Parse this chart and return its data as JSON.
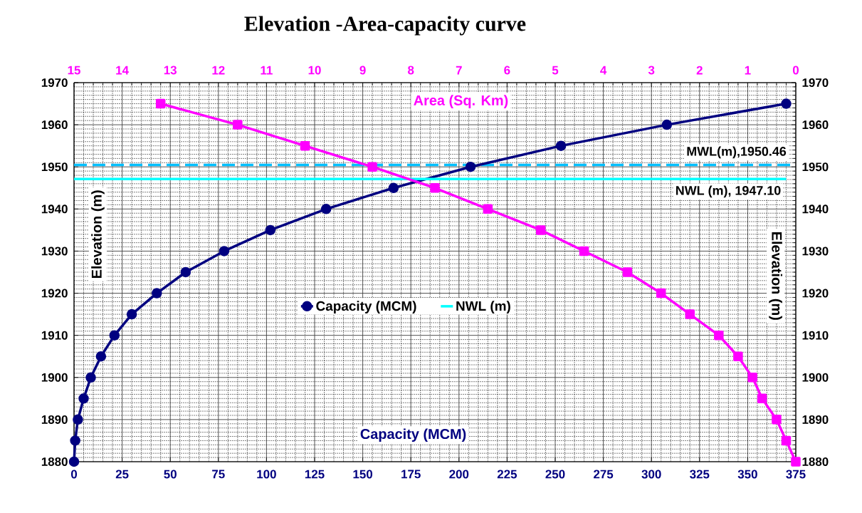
{
  "chart_data": {
    "type": "line",
    "title": "Elevation -Area-capacity curve",
    "xlabel": "Capacity (MCM)",
    "x2label": "Area (Sq. Km)",
    "ylabel": "Elevation (m)",
    "y2label": "Elevation (m)",
    "xlim": [
      0,
      375
    ],
    "xticks": [
      0,
      25,
      50,
      75,
      100,
      125,
      150,
      175,
      200,
      225,
      250,
      275,
      300,
      325,
      350,
      375
    ],
    "x2lim": [
      15,
      0
    ],
    "x2ticks": [
      15,
      14,
      13,
      12,
      11,
      10,
      9,
      8,
      7,
      6,
      5,
      4,
      3,
      2,
      1,
      0
    ],
    "ylim": [
      1880,
      1970
    ],
    "yticks": [
      1880,
      1890,
      1900,
      1910,
      1920,
      1930,
      1940,
      1950,
      1960,
      1970
    ],
    "y2lim": [
      1880,
      1970
    ],
    "y2ticks": [
      1880,
      1890,
      1900,
      1910,
      1920,
      1930,
      1940,
      1950,
      1960,
      1970
    ],
    "grid": true,
    "legend": "center",
    "series": [
      {
        "name": "Capacity (MCM)",
        "color": "#000080",
        "marker": "circle",
        "x": [
          0,
          0.6,
          2,
          5,
          8.7,
          14,
          21,
          30,
          43,
          58,
          78,
          102,
          131,
          166,
          206,
          253,
          308,
          370
        ],
        "values": [
          1880,
          1885,
          1890,
          1895,
          1900,
          1905,
          1910,
          1915,
          1920,
          1925,
          1930,
          1935,
          1940,
          1945,
          1950,
          1955,
          1960,
          1965
        ]
      },
      {
        "color": "#ff00ff",
        "marker": "square",
        "axis": "x2",
        "x": [
          0.0,
          0.2,
          0.4,
          0.7,
          0.9,
          1.2,
          1.6,
          2.2,
          2.8,
          3.5,
          4.4,
          5.3,
          6.4,
          7.5,
          8.8,
          10.2,
          11.6,
          13.2
        ],
        "values": [
          1880,
          1885,
          1890,
          1895,
          1900,
          1905,
          1910,
          1915,
          1920,
          1925,
          1930,
          1935,
          1940,
          1945,
          1950,
          1955,
          1960,
          1965
        ]
      },
      {
        "name": "NWL (m)",
        "type": "line",
        "color": "#00ffff",
        "marker": "none",
        "x": [
          0,
          370
        ],
        "values": [
          1947.1,
          1947.1
        ]
      }
    ],
    "ref_lines": [
      {
        "axis": "y",
        "value": 1950.46,
        "label": "MWL(m),1950.46",
        "color": "#00bfff",
        "line_style": "dashed"
      }
    ],
    "annotations": [
      {
        "text": "NWL (m), 1947.10",
        "x": 370,
        "y": 1947.1
      }
    ]
  }
}
